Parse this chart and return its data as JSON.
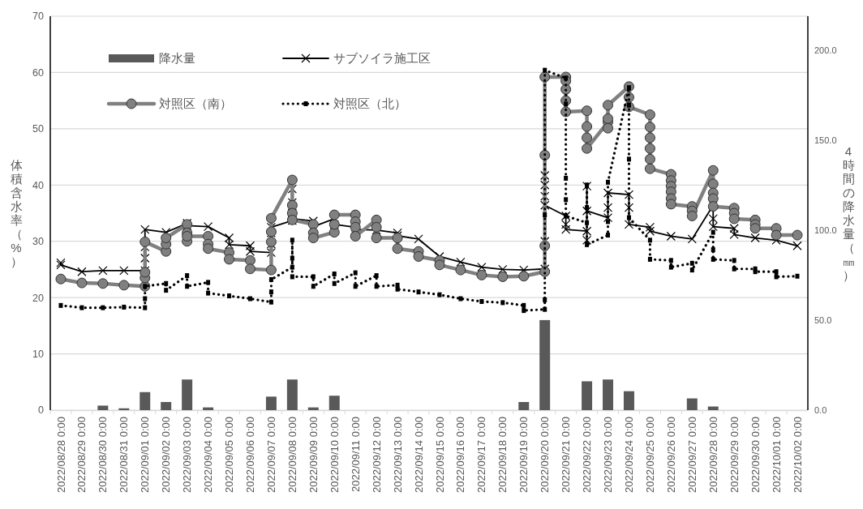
{
  "chart_data": {
    "type": "line",
    "ylabel": "体積含水率（%）",
    "y2label": "4時間の降水量（㎜）",
    "ylim": [
      0,
      70
    ],
    "yticks": [
      0,
      10,
      20,
      30,
      40,
      50,
      60,
      70
    ],
    "y2lim": [
      0,
      218.75
    ],
    "y2ticks": [
      {
        "value": 0,
        "label": "0.0"
      },
      {
        "value": 50,
        "label": "50.0"
      },
      {
        "value": 100,
        "label": "100.0"
      },
      {
        "value": 150,
        "label": "150.0"
      },
      {
        "value": 200,
        "label": "200.0"
      }
    ],
    "xlim": [
      "2022-08-27T12:00",
      "2022-10-02T12:00"
    ],
    "xticks": [
      {
        "value": "2022-08-28",
        "label": "2022/08/28 0:00"
      },
      {
        "value": "2022-08-29",
        "label": "2022/08/29 0:00"
      },
      {
        "value": "2022-08-30",
        "label": "2022/08/30 0:00"
      },
      {
        "value": "2022-08-31",
        "label": "2022/08/31 0:00"
      },
      {
        "value": "2022-09-01",
        "label": "2022/09/01 0:00"
      },
      {
        "value": "2022-09-02",
        "label": "2022/09/02 0:00"
      },
      {
        "value": "2022-09-03",
        "label": "2022/09/03 0:00"
      },
      {
        "value": "2022-09-04",
        "label": "2022/09/04 0:00"
      },
      {
        "value": "2022-09-05",
        "label": "2022/09/05 0:00"
      },
      {
        "value": "2022-09-06",
        "label": "2022/09/06 0:00"
      },
      {
        "value": "2022-09-07",
        "label": "2022/09/07 0:00"
      },
      {
        "value": "2022-09-08",
        "label": "2022/09/08 0:00"
      },
      {
        "value": "2022-09-09",
        "label": "2022/09/09 0:00"
      },
      {
        "value": "2022-09-10",
        "label": "2022/09/10 0:00"
      },
      {
        "value": "2022-09-11",
        "label": "2022/09/11 0:00"
      },
      {
        "value": "2022-09-12",
        "label": "2022/09/12 0:00"
      },
      {
        "value": "2022-09-13",
        "label": "2022/09/13 0:00"
      },
      {
        "value": "2022-09-14",
        "label": "2022/09/14 0:00"
      },
      {
        "value": "2022-09-15",
        "label": "2022/09/15 0:00"
      },
      {
        "value": "2022-09-16",
        "label": "2022/09/16 0:00"
      },
      {
        "value": "2022-09-17",
        "label": "2022/09/17 0:00"
      },
      {
        "value": "2022-09-18",
        "label": "2022/09/18 0:00"
      },
      {
        "value": "2022-09-19",
        "label": "2022/09/19 0:00"
      },
      {
        "value": "2022-09-20",
        "label": "2022/09/20 0:00"
      },
      {
        "value": "2022-09-21",
        "label": "2022/09/21 0:00"
      },
      {
        "value": "2022-09-22",
        "label": "2022/09/22 0:00"
      },
      {
        "value": "2022-09-23",
        "label": "2022/09/23 0:00"
      },
      {
        "value": "2022-09-24",
        "label": "2022/09/24 0:00"
      },
      {
        "value": "2022-09-25",
        "label": "2022/09/25 0:00"
      },
      {
        "value": "2022-09-26",
        "label": "2022/09/26 0:00"
      },
      {
        "value": "2022-09-27",
        "label": "2022/09/27 0:00"
      },
      {
        "value": "2022-09-28",
        "label": "2022/09/28 0:00"
      },
      {
        "value": "2022-09-29",
        "label": "2022/09/29 0:00"
      },
      {
        "value": "2022-09-30",
        "label": "2022/09/30 0:00"
      },
      {
        "value": "2022-10-01",
        "label": "2022/10/01 0:00"
      },
      {
        "value": "2022-10-02",
        "label": "2022/10/02 0:00"
      }
    ],
    "grid": "y",
    "legend": "top left",
    "series": [
      {
        "name": "降水量",
        "type": "bar",
        "axis": "y2",
        "color": "#595959",
        "x": [
          "2022-08-30",
          "2022-08-31",
          "2022-09-01",
          "2022-09-02",
          "2022-09-03",
          "2022-09-04",
          "2022-09-07",
          "2022-09-08",
          "2022-09-09",
          "2022-09-10",
          "2022-09-19",
          "2022-09-20",
          "2022-09-22",
          "2022-09-23",
          "2022-09-24",
          "2022-09-27",
          "2022-09-28"
        ],
        "values": [
          2.5,
          1.0,
          10,
          4.5,
          17,
          1.5,
          7.5,
          17,
          1.5,
          8,
          4.5,
          50,
          16,
          17,
          10.5,
          6.5,
          2
        ]
      },
      {
        "name": "サブソイラ施工区",
        "color": "#000000",
        "marker": "cross",
        "line_style": "solid",
        "x": [
          "2022-08-28",
          "2022-08-28",
          "2022-08-29",
          "2022-08-30",
          "2022-08-31",
          "2022-09-01",
          "2022-09-01",
          "2022-09-01",
          "2022-09-01",
          "2022-09-02",
          "2022-09-03",
          "2022-09-03",
          "2022-09-04",
          "2022-09-05",
          "2022-09-05",
          "2022-09-06",
          "2022-09-06",
          "2022-09-07",
          "2022-09-07",
          "2022-09-07",
          "2022-09-07",
          "2022-09-08",
          "2022-09-08",
          "2022-09-08",
          "2022-09-08",
          "2022-09-08",
          "2022-09-09",
          "2022-09-09",
          "2022-09-10",
          "2022-09-10",
          "2022-09-11",
          "2022-09-11",
          "2022-09-12",
          "2022-09-13",
          "2022-09-13",
          "2022-09-14",
          "2022-09-15",
          "2022-09-16",
          "2022-09-17",
          "2022-09-18",
          "2022-09-19",
          "2022-09-20",
          "2022-09-20",
          "2022-09-20",
          "2022-09-20",
          "2022-09-20",
          "2022-09-20",
          "2022-09-21",
          "2022-09-21",
          "2022-09-21",
          "2022-09-22",
          "2022-09-22",
          "2022-09-22",
          "2022-09-22",
          "2022-09-23",
          "2022-09-23",
          "2022-09-23",
          "2022-09-24",
          "2022-09-24",
          "2022-09-24",
          "2022-09-25",
          "2022-09-25",
          "2022-09-26",
          "2022-09-27",
          "2022-09-28",
          "2022-09-28",
          "2022-09-28",
          "2022-09-29",
          "2022-09-29",
          "2022-09-30",
          "2022-10-01",
          "2022-10-02"
        ],
        "values": [
          26.2,
          25.8,
          24.6,
          24.8,
          24.8,
          24.8,
          27.0,
          29.0,
          32.1,
          31.6,
          33.2,
          32.8,
          32.6,
          30.6,
          29.4,
          29.2,
          28.2,
          28.0,
          29.5,
          31.5,
          32.5,
          33.7,
          36.9,
          39.3,
          35.0,
          34.0,
          33.6,
          32.6,
          34.0,
          33.0,
          32.5,
          32.1,
          32.0,
          31.5,
          31.0,
          30.4,
          27.3,
          26.3,
          25.4,
          25.0,
          24.9,
          25.1,
          30.0,
          38.0,
          41.7,
          40.0,
          36.4,
          34.5,
          33.0,
          32.1,
          31.8,
          30.2,
          39.8,
          35.4,
          34.2,
          36.0,
          38.6,
          38.3,
          36.0,
          33.0,
          32.5,
          31.8,
          30.9,
          30.4,
          36.4,
          34.0,
          32.6,
          32.3,
          31.2,
          30.6,
          30.2,
          29.2
        ]
      },
      {
        "name": "対照区（南）",
        "color": "#808080",
        "marker": "circle",
        "line_style": "solid",
        "x": [
          "2022-08-28",
          "2022-08-29",
          "2022-08-30",
          "2022-08-31",
          "2022-09-01",
          "2022-09-01",
          "2022-09-01",
          "2022-09-01",
          "2022-09-02",
          "2022-09-02",
          "2022-09-02",
          "2022-09-03",
          "2022-09-03",
          "2022-09-03",
          "2022-09-03",
          "2022-09-04",
          "2022-09-04",
          "2022-09-04",
          "2022-09-05",
          "2022-09-05",
          "2022-09-06",
          "2022-09-06",
          "2022-09-07",
          "2022-09-07",
          "2022-09-07",
          "2022-09-07",
          "2022-09-08",
          "2022-09-08",
          "2022-09-08",
          "2022-09-08",
          "2022-09-09",
          "2022-09-09",
          "2022-09-09",
          "2022-09-10",
          "2022-09-10",
          "2022-09-10",
          "2022-09-11",
          "2022-09-11",
          "2022-09-11",
          "2022-09-11",
          "2022-09-12",
          "2022-09-12",
          "2022-09-12",
          "2022-09-13",
          "2022-09-13",
          "2022-09-14",
          "2022-09-14",
          "2022-09-15",
          "2022-09-15",
          "2022-09-16",
          "2022-09-17",
          "2022-09-18",
          "2022-09-19",
          "2022-09-20",
          "2022-09-20",
          "2022-09-20",
          "2022-09-20",
          "2022-09-21",
          "2022-09-21",
          "2022-09-21",
          "2022-09-21",
          "2022-09-21",
          "2022-09-22",
          "2022-09-22",
          "2022-09-22",
          "2022-09-22",
          "2022-09-23",
          "2022-09-23",
          "2022-09-23",
          "2022-09-23",
          "2022-09-24",
          "2022-09-24",
          "2022-09-24",
          "2022-09-25",
          "2022-09-25",
          "2022-09-25",
          "2022-09-25",
          "2022-09-25",
          "2022-09-25",
          "2022-09-26",
          "2022-09-26",
          "2022-09-26",
          "2022-09-26",
          "2022-09-26",
          "2022-09-26",
          "2022-09-27",
          "2022-09-27",
          "2022-09-27",
          "2022-09-28",
          "2022-09-28",
          "2022-09-28",
          "2022-09-28",
          "2022-09-28",
          "2022-09-29",
          "2022-09-29",
          "2022-09-29",
          "2022-09-30",
          "2022-09-30",
          "2022-09-30",
          "2022-10-01",
          "2022-10-01",
          "2022-10-02"
        ],
        "values": [
          23.3,
          22.6,
          22.5,
          22.2,
          22.0,
          23.5,
          24.5,
          29.9,
          28.2,
          29.5,
          30.6,
          33.0,
          31.5,
          30.0,
          30.9,
          30.9,
          29.5,
          28.7,
          28.0,
          26.8,
          26.6,
          25.1,
          24.9,
          29.9,
          31.7,
          34.1,
          40.9,
          36.4,
          35.0,
          33.8,
          33.0,
          31.5,
          30.6,
          31.6,
          33.0,
          34.7,
          34.7,
          33.5,
          32.5,
          30.9,
          33.8,
          32.5,
          30.6,
          30.6,
          28.7,
          28.2,
          27.3,
          26.6,
          25.8,
          24.9,
          24.0,
          23.7,
          23.8,
          24.6,
          29.2,
          45.3,
          59.2,
          59.2,
          58.5,
          57.0,
          55.0,
          53.0,
          53.2,
          50.4,
          48.4,
          46.5,
          51.2,
          50.1,
          51.8,
          54.2,
          57.5,
          55.6,
          53.9,
          52.5,
          50.3,
          48.4,
          46.5,
          44.6,
          42.9,
          41.9,
          40.8,
          39.8,
          38.8,
          37.6,
          36.6,
          36.2,
          35.4,
          34.5,
          42.6,
          40.2,
          38.6,
          37.6,
          36.2,
          35.9,
          35.0,
          34.0,
          33.8,
          33.0,
          32.3,
          32.3,
          31.1,
          31.1
        ]
      },
      {
        "name": "対照区（北）",
        "color": "#000000",
        "marker": "square",
        "line_style": "dotted",
        "x": [
          "2022-08-28",
          "2022-08-29",
          "2022-08-30",
          "2022-08-31",
          "2022-09-01",
          "2022-09-01",
          "2022-09-01",
          "2022-09-02",
          "2022-09-02",
          "2022-09-03",
          "2022-09-03",
          "2022-09-04",
          "2022-09-04",
          "2022-09-05",
          "2022-09-06",
          "2022-09-07",
          "2022-09-07",
          "2022-09-07",
          "2022-09-08",
          "2022-09-08",
          "2022-09-08",
          "2022-09-08",
          "2022-09-09",
          "2022-09-09",
          "2022-09-10",
          "2022-09-10",
          "2022-09-11",
          "2022-09-11",
          "2022-09-12",
          "2022-09-12",
          "2022-09-13",
          "2022-09-13",
          "2022-09-14",
          "2022-09-15",
          "2022-09-16",
          "2022-09-17",
          "2022-09-18",
          "2022-09-19",
          "2022-09-19",
          "2022-09-20",
          "2022-09-20",
          "2022-09-20",
          "2022-09-20",
          "2022-09-21",
          "2022-09-21",
          "2022-09-21",
          "2022-09-21",
          "2022-09-21",
          "2022-09-22",
          "2022-09-22",
          "2022-09-22",
          "2022-09-22",
          "2022-09-23",
          "2022-09-23",
          "2022-09-23",
          "2022-09-24",
          "2022-09-24",
          "2022-09-24",
          "2022-09-24",
          "2022-09-25",
          "2022-09-25",
          "2022-09-26",
          "2022-09-26",
          "2022-09-27",
          "2022-09-27",
          "2022-09-28",
          "2022-09-28",
          "2022-09-28",
          "2022-09-29",
          "2022-09-29",
          "2022-09-30",
          "2022-09-30",
          "2022-10-01",
          "2022-10-01",
          "2022-10-02"
        ],
        "values": [
          18.6,
          18.2,
          18.2,
          18.3,
          18.2,
          19.8,
          22.0,
          22.5,
          21.3,
          23.9,
          22.0,
          22.7,
          20.8,
          20.3,
          19.8,
          19.2,
          21.0,
          23.2,
          25.4,
          30.2,
          27.0,
          23.7,
          23.7,
          22.0,
          24.2,
          22.5,
          24.4,
          22.0,
          23.9,
          22.0,
          22.2,
          21.5,
          21.0,
          20.5,
          19.8,
          19.3,
          19.1,
          18.6,
          17.7,
          17.9,
          19.6,
          34.7,
          60.4,
          59.0,
          54.4,
          41.2,
          37.4,
          34.5,
          33.3,
          40.0,
          36.0,
          29.4,
          31.1,
          33.5,
          40.5,
          57.3,
          54.2,
          44.6,
          34.2,
          30.2,
          26.8,
          26.6,
          25.4,
          26.1,
          24.9,
          31.6,
          28.5,
          26.8,
          26.6,
          25.1,
          25.1,
          24.6,
          24.6,
          23.7,
          23.8
        ]
      }
    ]
  }
}
